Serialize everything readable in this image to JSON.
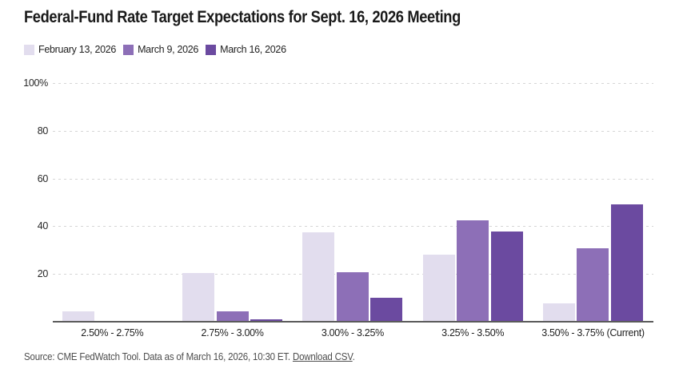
{
  "title": "Federal-Fund Rate Target Expectations for Sept. 16, 2026 Meeting",
  "legend": [
    {
      "label": "February 13, 2026",
      "color": "#e2ddee"
    },
    {
      "label": "March 9, 2026",
      "color": "#8d6fb7"
    },
    {
      "label": "March 16, 2026",
      "color": "#6b4aa0"
    }
  ],
  "chart_data": {
    "type": "bar",
    "title": "Federal-Fund Rate Target Expectations for Sept. 16, 2026 Meeting",
    "categories": [
      "2.50% - 2.75%",
      "2.75% - 3.00%",
      "3.00% - 3.25%",
      "3.25% - 3.50%",
      "3.50% - 3.75% (Current)"
    ],
    "series": [
      {
        "name": "February 13, 2026",
        "color": "#e2ddee",
        "values": [
          4.3,
          20.5,
          37.3,
          28.2,
          7.6
        ]
      },
      {
        "name": "March 9, 2026",
        "color": "#8d6fb7",
        "values": [
          0.1,
          4.4,
          20.8,
          42.4,
          30.7
        ]
      },
      {
        "name": "March 16, 2026",
        "color": "#6b4aa0",
        "values": [
          0,
          1.0,
          10.1,
          37.9,
          49.3
        ]
      }
    ],
    "xlabel": "",
    "ylabel": "",
    "ylim": [
      0,
      100
    ],
    "yticks": [
      {
        "value": 100,
        "label": "100%"
      },
      {
        "value": 80,
        "label": "80"
      },
      {
        "value": 60,
        "label": "60"
      },
      {
        "value": 40,
        "label": "40"
      },
      {
        "value": 20,
        "label": "20"
      }
    ],
    "grid": "horizontal-dashed",
    "legend_position": "top-left",
    "colors": {
      "axis": "#5a5a5a",
      "gridline": "#d6d6d6"
    }
  },
  "footer": {
    "source_text": "Source: CME FedWatch Tool. Data as of March 16, 2026, 10:30 ET. ",
    "link_label": "Download CSV",
    "suffix": "."
  }
}
